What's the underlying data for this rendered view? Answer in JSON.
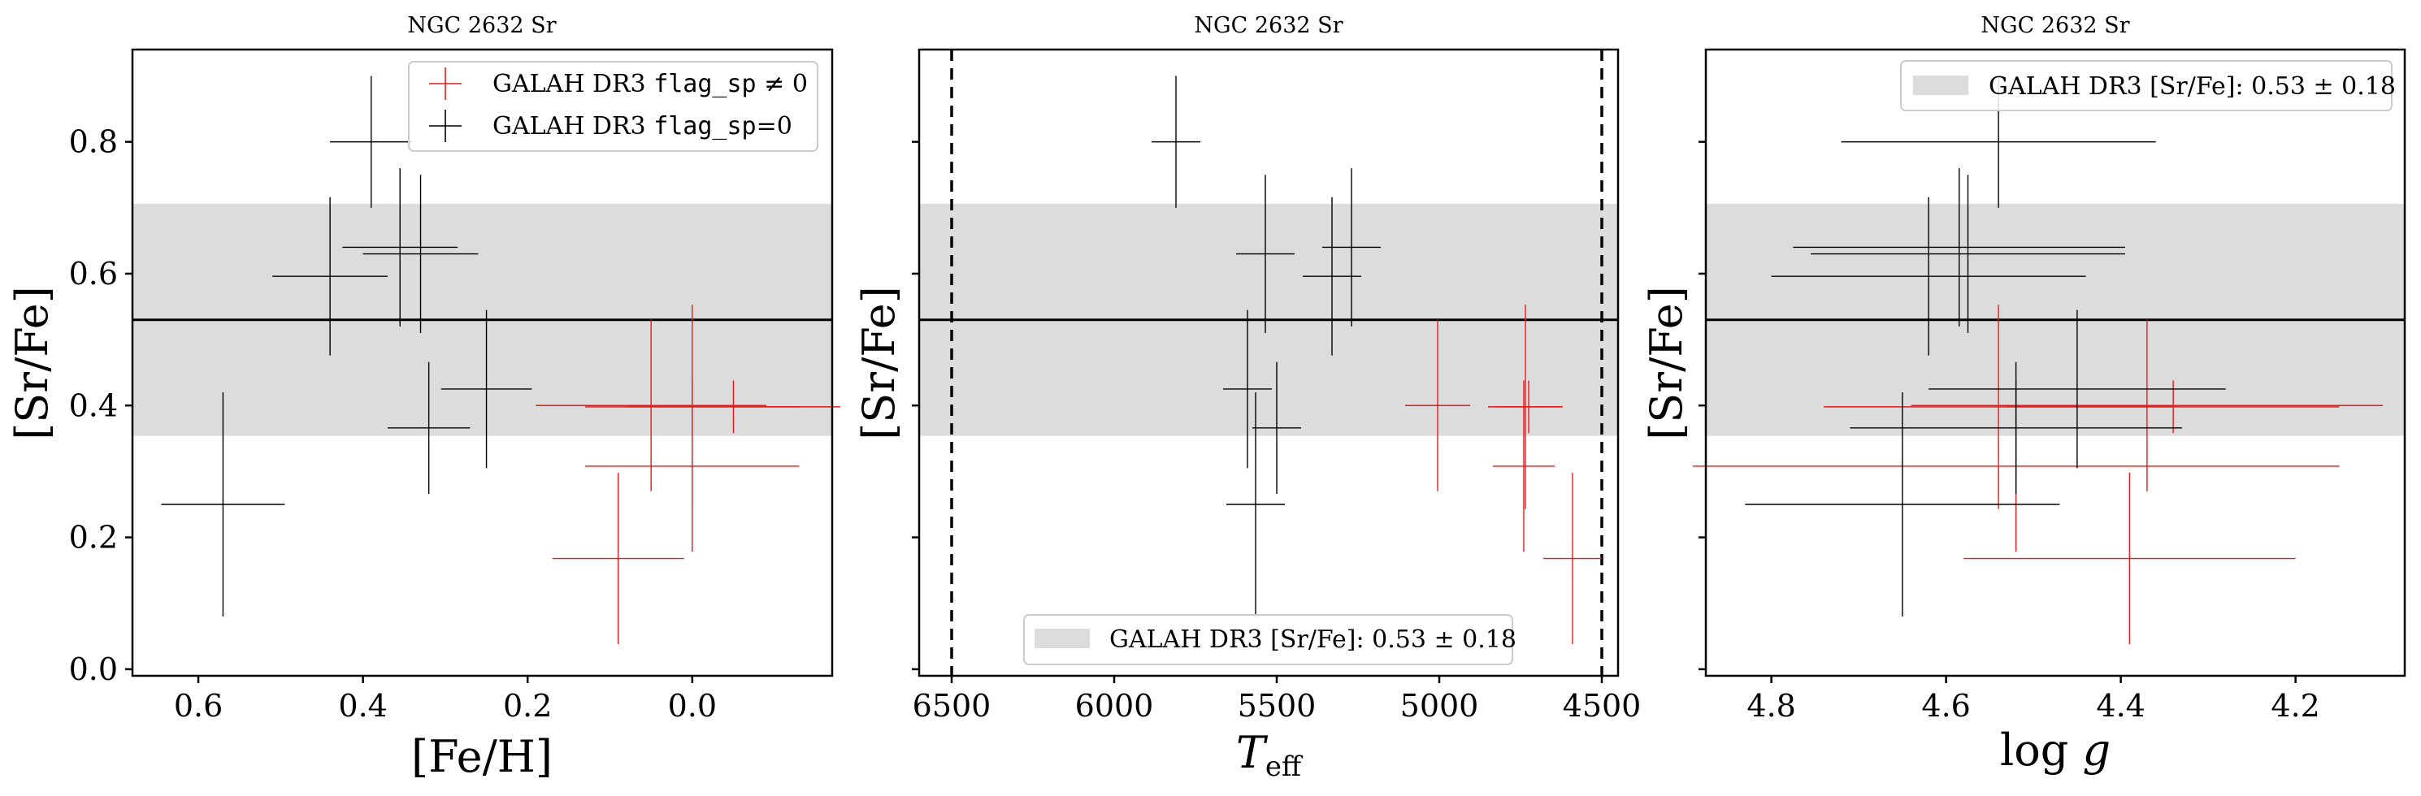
{
  "chart_data": [
    {
      "type": "scatter",
      "title": "NGC 2632 Sr",
      "xlabel": "[Fe/H]",
      "ylabel": "[Sr/Fe]",
      "xlim": [
        0.68,
        -0.17
      ],
      "ylim": [
        -0.01,
        0.94
      ],
      "x_ticks": [
        "0.6",
        "0.4",
        "0.2",
        "0.0"
      ],
      "x_tick_values": [
        0.6,
        0.4,
        0.2,
        0.0
      ],
      "y_ticks": [
        "0.0",
        "0.2",
        "0.4",
        "0.6",
        "0.8"
      ],
      "y_tick_values": [
        0.0,
        0.2,
        0.4,
        0.6,
        0.8
      ],
      "band": {
        "center": 0.53,
        "half_width": 0.176
      },
      "legend": {
        "placement": "top-right",
        "entries": [
          {
            "prefix": "GALAH DR3 ",
            "code": "flag_sp",
            "suffix": " ≠ 0",
            "color": "#e41a1c"
          },
          {
            "prefix": "GALAH DR3 ",
            "code": "flag_sp",
            "suffix": "=0",
            "color": "#000000"
          }
        ]
      },
      "series": [
        {
          "name": "GALAH DR3 flag_sp ≠ 0",
          "color": "#e41a1c",
          "points": [
            {
              "x": -0.05,
              "y": 0.398,
              "xerr": 0.13,
              "yerr": 0.04
            },
            {
              "x": 0.0,
              "y": 0.398,
              "xerr": 0.13,
              "yerr": 0.155
            },
            {
              "x": 0.05,
              "y": 0.4,
              "xerr": 0.14,
              "yerr": 0.13
            },
            {
              "x": 0.0,
              "y": 0.308,
              "xerr": 0.13,
              "yerr": 0.13
            },
            {
              "x": 0.09,
              "y": 0.168,
              "xerr": 0.08,
              "yerr": 0.13
            }
          ]
        },
        {
          "name": "GALAH DR3 flag_sp=0",
          "color": "#000000",
          "points": [
            {
              "x": 0.39,
              "y": 0.8,
              "xerr": 0.05,
              "yerr": 0.1
            },
            {
              "x": 0.44,
              "y": 0.596,
              "xerr": 0.07,
              "yerr": 0.12
            },
            {
              "x": 0.355,
              "y": 0.64,
              "xerr": 0.07,
              "yerr": 0.12
            },
            {
              "x": 0.33,
              "y": 0.63,
              "xerr": 0.07,
              "yerr": 0.12
            },
            {
              "x": 0.25,
              "y": 0.425,
              "xerr": 0.055,
              "yerr": 0.12
            },
            {
              "x": 0.32,
              "y": 0.366,
              "xerr": 0.05,
              "yerr": 0.1
            },
            {
              "x": 0.57,
              "y": 0.25,
              "xerr": 0.075,
              "yerr": 0.17
            }
          ]
        }
      ]
    },
    {
      "type": "scatter",
      "title": "NGC 2632 Sr",
      "xlabel": "T_eff",
      "ylabel": "[Sr/Fe]",
      "xlim": [
        6600,
        4450
      ],
      "ylim": [
        -0.01,
        0.94
      ],
      "x_ticks": [
        "6500",
        "6000",
        "5500",
        "5000",
        "4500"
      ],
      "x_tick_values": [
        6500,
        6000,
        5500,
        5000,
        4500
      ],
      "y_tick_values": [
        0.0,
        0.2,
        0.4,
        0.6,
        0.8
      ],
      "vlines": [
        6500,
        4500
      ],
      "band": {
        "center": 0.53,
        "half_width": 0.176
      },
      "legend": {
        "placement": "bottom-center",
        "entries": [
          {
            "text": "GALAH DR3 [Sr/Fe]: 0.53 ± 0.18",
            "color": "#dcdcdc"
          }
        ]
      },
      "series": [
        {
          "name": "GALAH DR3 flag_sp ≠ 0",
          "color": "#e41a1c",
          "points": [
            {
              "x": 5005,
              "y": 0.4,
              "xerr": 100,
              "yerr": 0.13
            },
            {
              "x": 4735,
              "y": 0.398,
              "xerr": 115,
              "yerr": 0.155
            },
            {
              "x": 4725,
              "y": 0.398,
              "xerr": 100,
              "yerr": 0.04
            },
            {
              "x": 4740,
              "y": 0.308,
              "xerr": 95,
              "yerr": 0.13
            },
            {
              "x": 4590,
              "y": 0.168,
              "xerr": 90,
              "yerr": 0.13
            }
          ]
        },
        {
          "name": "GALAH DR3 flag_sp=0",
          "color": "#000000",
          "points": [
            {
              "x": 5810,
              "y": 0.8,
              "xerr": 75,
              "yerr": 0.1
            },
            {
              "x": 5535,
              "y": 0.63,
              "xerr": 90,
              "yerr": 0.12
            },
            {
              "x": 5270,
              "y": 0.64,
              "xerr": 90,
              "yerr": 0.12
            },
            {
              "x": 5330,
              "y": 0.596,
              "xerr": 90,
              "yerr": 0.12
            },
            {
              "x": 5590,
              "y": 0.425,
              "xerr": 75,
              "yerr": 0.12
            },
            {
              "x": 5500,
              "y": 0.366,
              "xerr": 75,
              "yerr": 0.1
            },
            {
              "x": 5565,
              "y": 0.25,
              "xerr": 90,
              "yerr": 0.17
            }
          ]
        }
      ]
    },
    {
      "type": "scatter",
      "title": "NGC 2632 Sr",
      "xlabel": "log g",
      "ylabel": "[Sr/Fe]",
      "xlim": [
        4.875,
        4.075
      ],
      "ylim": [
        -0.01,
        0.94
      ],
      "x_ticks": [
        "4.8",
        "4.6",
        "4.4",
        "4.2"
      ],
      "x_tick_values": [
        4.8,
        4.6,
        4.4,
        4.2
      ],
      "y_tick_values": [
        0.0,
        0.2,
        0.4,
        0.6,
        0.8
      ],
      "band": {
        "center": 0.53,
        "half_width": 0.176
      },
      "legend": {
        "placement": "top-right",
        "entries": [
          {
            "text": "GALAH DR3 [Sr/Fe]: 0.53 ± 0.18",
            "color": "#dcdcdc"
          }
        ]
      },
      "series": [
        {
          "name": "GALAH DR3 flag_sp ≠ 0",
          "color": "#e41a1c",
          "points": [
            {
              "x": 4.54,
              "y": 0.398,
              "xerr": 0.2,
              "yerr": 0.155
            },
            {
              "x": 4.37,
              "y": 0.4,
              "xerr": 0.27,
              "yerr": 0.13
            },
            {
              "x": 4.34,
              "y": 0.398,
              "xerr": 0.19,
              "yerr": 0.04
            },
            {
              "x": 4.52,
              "y": 0.308,
              "xerr": 0.37,
              "yerr": 0.13
            },
            {
              "x": 4.39,
              "y": 0.168,
              "xerr": 0.19,
              "yerr": 0.13
            }
          ]
        },
        {
          "name": "GALAH DR3 flag_sp=0",
          "color": "#000000",
          "points": [
            {
              "x": 4.54,
              "y": 0.8,
              "xerr": 0.18,
              "yerr": 0.1
            },
            {
              "x": 4.585,
              "y": 0.64,
              "xerr": 0.19,
              "yerr": 0.12
            },
            {
              "x": 4.575,
              "y": 0.63,
              "xerr": 0.18,
              "yerr": 0.12
            },
            {
              "x": 4.62,
              "y": 0.596,
              "xerr": 0.18,
              "yerr": 0.12
            },
            {
              "x": 4.45,
              "y": 0.425,
              "xerr": 0.17,
              "yerr": 0.12
            },
            {
              "x": 4.52,
              "y": 0.366,
              "xerr": 0.19,
              "yerr": 0.1
            },
            {
              "x": 4.65,
              "y": 0.25,
              "xerr": 0.18,
              "yerr": 0.17
            }
          ]
        }
      ]
    }
  ]
}
